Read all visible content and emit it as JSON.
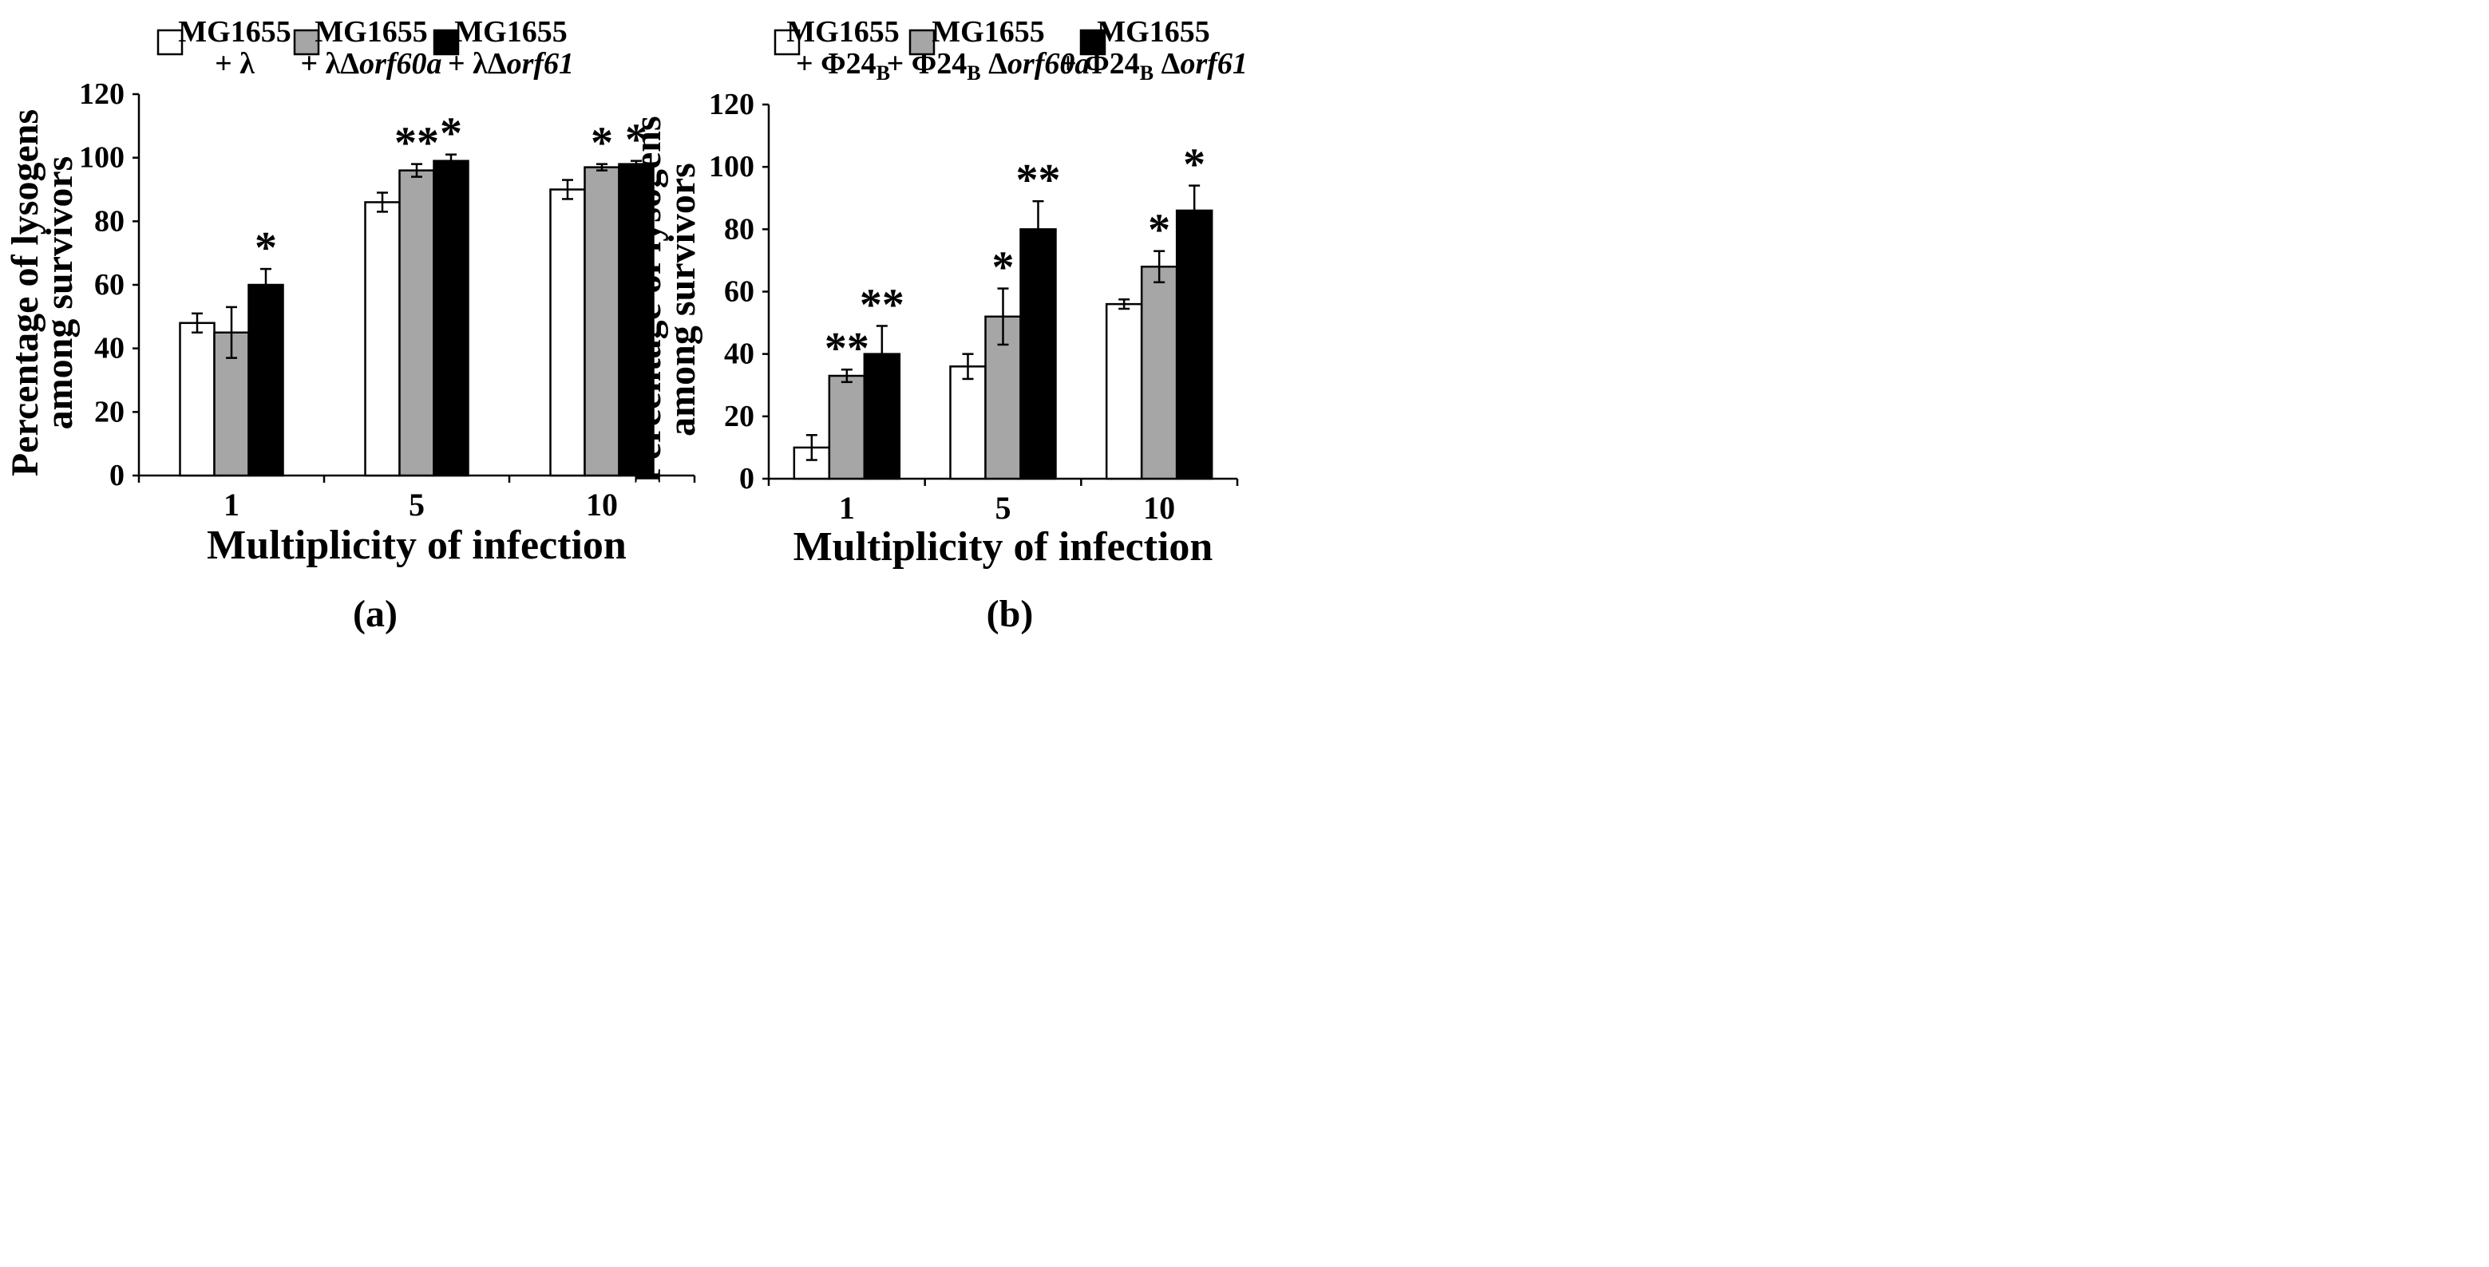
{
  "colors": {
    "white": "#ffffff",
    "gray": "#a6a6a6",
    "black": "#000000"
  },
  "chart_data": [
    {
      "type": "bar",
      "panel_label": "(a)",
      "categories": [
        "1",
        "5",
        "10"
      ],
      "xlabel": "Multiplicity of infection",
      "ylabel_line1": "Percentage of lysogens",
      "ylabel_line2": "among survivors",
      "ylim": [
        0,
        120
      ],
      "yticks": [
        "0",
        "20",
        "40",
        "60",
        "80",
        "100",
        "120"
      ],
      "series": [
        {
          "name": "MG1655",
          "sub_main": "+ λ",
          "sub_sub": "",
          "sub_tail": "",
          "sub_italic": "",
          "color": "#ffffff",
          "values": [
            48,
            86,
            90
          ],
          "errors": [
            3,
            3,
            3
          ],
          "stars": [
            "",
            "",
            ""
          ]
        },
        {
          "name": "MG1655",
          "sub_main": "+ λΔ",
          "sub_sub": "",
          "sub_tail": "",
          "sub_italic": "orf60a",
          "color": "#a6a6a6",
          "values": [
            45,
            96,
            97
          ],
          "errors": [
            8,
            2,
            1
          ],
          "stars": [
            "",
            "**",
            "*"
          ]
        },
        {
          "name": "MG1655",
          "sub_main": "+ λΔ",
          "sub_sub": "",
          "sub_tail": "",
          "sub_italic": "orf61",
          "color": "#000000",
          "values": [
            60,
            99,
            98
          ],
          "errors": [
            5,
            2,
            1
          ],
          "stars": [
            "*",
            "*",
            "*"
          ]
        }
      ]
    },
    {
      "type": "bar",
      "panel_label": "(b)",
      "categories": [
        "1",
        "5",
        "10"
      ],
      "xlabel": "Multiplicity of infection",
      "ylabel_line1": "Percentage of lysogens",
      "ylabel_line2": "among survivors",
      "ylim": [
        0,
        120
      ],
      "yticks": [
        "0",
        "20",
        "40",
        "60",
        "80",
        "100",
        "120"
      ],
      "series": [
        {
          "name": "MG1655",
          "sub_main": "+ Φ24",
          "sub_sub": "B",
          "sub_tail": "",
          "sub_italic": "",
          "color": "#ffffff",
          "values": [
            10,
            36,
            56
          ],
          "errors": [
            4,
            4,
            1.5
          ],
          "stars": [
            "",
            "",
            ""
          ]
        },
        {
          "name": "MG1655",
          "sub_main": "+ Φ24",
          "sub_sub": "B",
          "sub_tail": " Δ",
          "sub_italic": "orf60a",
          "color": "#a6a6a6",
          "values": [
            33,
            52,
            68
          ],
          "errors": [
            2,
            9,
            5
          ],
          "stars": [
            "**",
            "*",
            "*"
          ]
        },
        {
          "name": "MG1655",
          "sub_main": "+ Φ24",
          "sub_sub": "B",
          "sub_tail": " Δ",
          "sub_italic": "orf61",
          "color": "#000000",
          "values": [
            40,
            80,
            86
          ],
          "errors": [
            9,
            9,
            8
          ],
          "stars": [
            "**",
            "**",
            "*"
          ]
        }
      ]
    }
  ]
}
